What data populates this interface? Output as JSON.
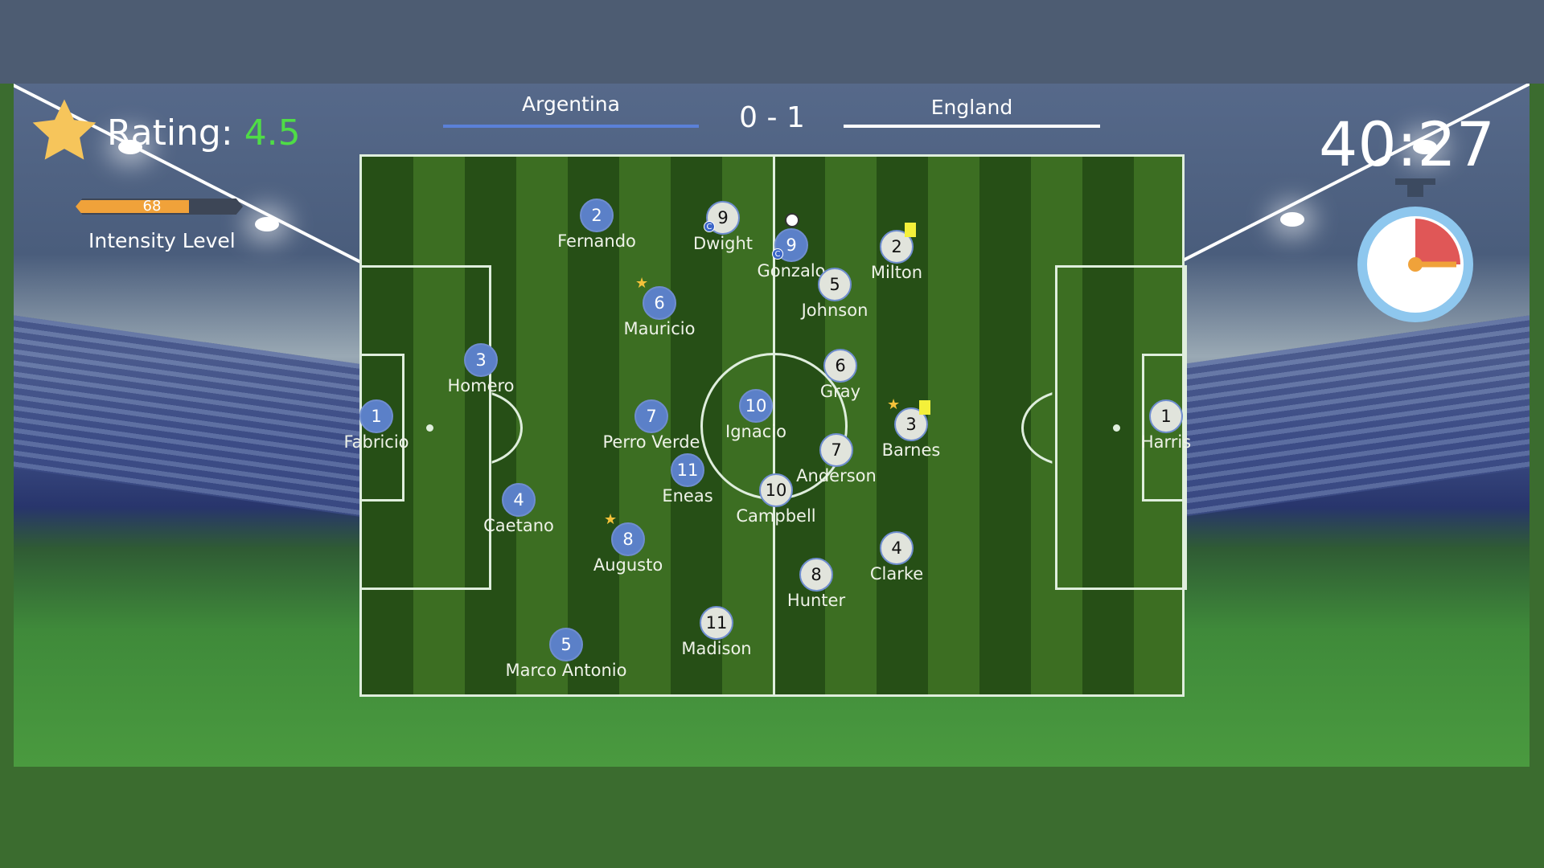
{
  "header": {
    "home_team": "Argentina",
    "away_team": "England",
    "score": "0 - 1",
    "home_color": "#5b80d8",
    "away_color": "#ffffff"
  },
  "rating": {
    "label": "Rating:",
    "value": "4.5",
    "icon": "star-icon"
  },
  "intensity": {
    "label": "Intensity Level",
    "value": "68",
    "percent": 68
  },
  "clock": {
    "time": "40:27",
    "icon": "stopwatch-icon"
  },
  "players": [
    {
      "team": "arg",
      "number": "2",
      "name": "Fernando"
    },
    {
      "team": "arg",
      "number": "6",
      "name": "Mauricio",
      "star": true
    },
    {
      "team": "arg",
      "number": "3",
      "name": "Homero"
    },
    {
      "team": "arg",
      "number": "1",
      "name": "Fabricio"
    },
    {
      "team": "arg",
      "number": "7",
      "name": "Perro Verde"
    },
    {
      "team": "arg",
      "number": "10",
      "name": "Ignacio"
    },
    {
      "team": "arg",
      "number": "11",
      "name": "Eneas"
    },
    {
      "team": "arg",
      "number": "4",
      "name": "Caetano"
    },
    {
      "team": "arg",
      "number": "8",
      "name": "Augusto",
      "star": true
    },
    {
      "team": "arg",
      "number": "5",
      "name": "Marco Antonio"
    },
    {
      "team": "arg",
      "number": "9",
      "name": "Gonzalo",
      "captain": "C",
      "ball": true
    },
    {
      "team": "eng",
      "number": "9",
      "name": "Dwight",
      "captain": "C"
    },
    {
      "team": "eng",
      "number": "2",
      "name": "Milton",
      "yellow_card": true
    },
    {
      "team": "eng",
      "number": "5",
      "name": "Johnson"
    },
    {
      "team": "eng",
      "number": "6",
      "name": "Gray"
    },
    {
      "team": "eng",
      "number": "7",
      "name": "Anderson"
    },
    {
      "team": "eng",
      "number": "10",
      "name": "Campbell"
    },
    {
      "team": "eng",
      "number": "3",
      "name": "Barnes",
      "star": true,
      "yellow_card": true
    },
    {
      "team": "eng",
      "number": "1",
      "name": "Harris"
    },
    {
      "team": "eng",
      "number": "4",
      "name": "Clarke"
    },
    {
      "team": "eng",
      "number": "8",
      "name": "Hunter"
    },
    {
      "team": "eng",
      "number": "11",
      "name": "Madison"
    }
  ]
}
